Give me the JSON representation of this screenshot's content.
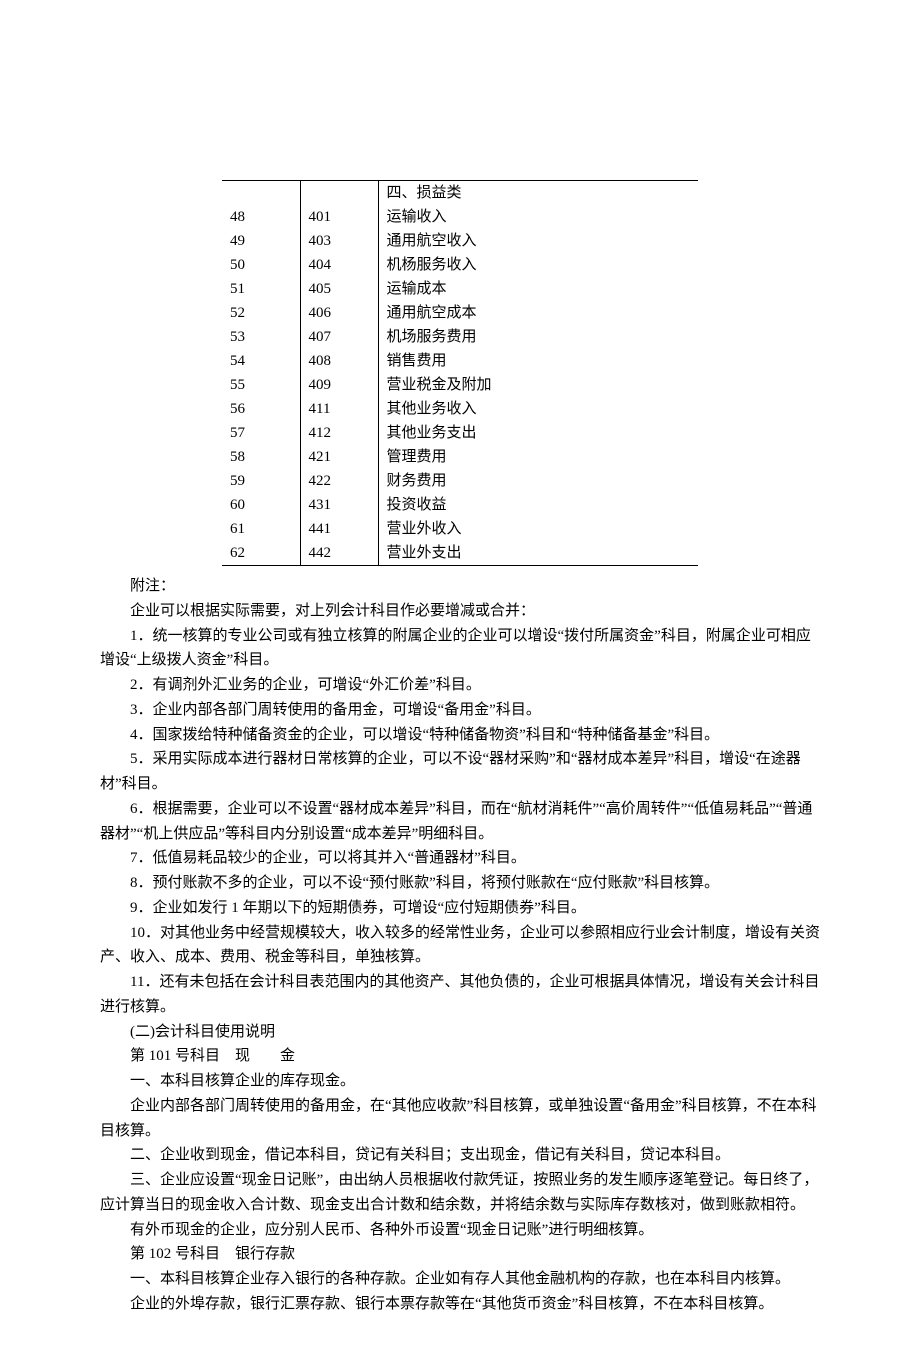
{
  "table": {
    "header_label": "四、损益类",
    "rows": [
      {
        "seq": "48",
        "code": "401",
        "name": "运输收入"
      },
      {
        "seq": "49",
        "code": "403",
        "name": "通用航空收入"
      },
      {
        "seq": "50",
        "code": "404",
        "name": "机杨服务收入"
      },
      {
        "seq": "51",
        "code": "405",
        "name": "运输成本"
      },
      {
        "seq": "52",
        "code": "406",
        "name": "通用航空成本"
      },
      {
        "seq": "53",
        "code": "407",
        "name": "机场服务费用"
      },
      {
        "seq": "54",
        "code": "408",
        "name": "销售费用"
      },
      {
        "seq": "55",
        "code": "409",
        "name": "营业税金及附加"
      },
      {
        "seq": "56",
        "code": "411",
        "name": "其他业务收入"
      },
      {
        "seq": "57",
        "code": "412",
        "name": "其他业务支出"
      },
      {
        "seq": "58",
        "code": "421",
        "name": "管理费用"
      },
      {
        "seq": "59",
        "code": "422",
        "name": "财务费用"
      },
      {
        "seq": "60",
        "code": "431",
        "name": "投资收益"
      },
      {
        "seq": "61",
        "code": "441",
        "name": "营业外收入"
      },
      {
        "seq": "62",
        "code": "442",
        "name": "营业外支出"
      }
    ]
  },
  "paragraphs": [
    "附注：",
    "企业可以根据实际需要，对上列会计科目作必要增减或合并：",
    "1．统一核算的专业公司或有独立核算的附属企业的企业可以增设“拨付所属资金”科目，附属企业可相应增设“上级拨人资金”科目。",
    "2．有调剂外汇业务的企业，可增设“外汇价差”科目。",
    "3．企业内部各部门周转使用的备用金，可增设“备用金”科目。",
    "4．国家拨给特种储备资金的企业，可以增设“特种储备物资”科目和“特种储备基金”科目。",
    "5．采用实际成本进行器材日常核算的企业，可以不设“器材采购”和“器材成本差异”科目，增设“在途器材”科目。",
    "6．根据需要，企业可以不设置“器材成本差异”科目，而在“航材消耗件”“高价周转件”“低值易耗品”“普通器材”“机上供应品”等科目内分别设置“成本差异”明细科目。",
    "7．低值易耗品较少的企业，可以将其并入“普通器材”科目。",
    "8．预付账款不多的企业，可以不设“预付账款”科目，将预付账款在“应付账款”科目核算。",
    "9．企业如发行 1 年期以下的短期债券，可增设“应付短期债券”科目。",
    "10．对其他业务中经营规模较大，收入较多的经常性业务，企业可以参照相应行业会计制度，增设有关资产、收入、成本、费用、税金等科目，单独核算。",
    "11．还有未包括在会计科目表范围内的其他资产、其他负债的，企业可根据具体情况，增设有关会计科目进行核算。",
    "(二)会计科目使用说明",
    "第 101 号科目　现　　金",
    "一、本科目核算企业的库存现金。",
    "企业内部各部门周转使用的备用金，在“其他应收款”科目核算，或单独设置“备用金”科目核算，不在本科目核算。",
    "二、企业收到现金，借记本科目，贷记有关科目；支出现金，借记有关科目，贷记本科目。",
    "三、企业应设置“现金日记账”，由出纳人员根据收付款凭证，按照业务的发生顺序逐笔登记。每日终了，应计算当日的现金收入合计数、现金支出合计数和结余数，并将结余数与实际库存数核对，做到账款相符。",
    "有外币现金的企业，应分别人民币、各种外币设置“现金日记账”进行明细核算。",
    "第 102 号科目　银行存款",
    "一、本科目核算企业存入银行的各种存款。企业如有存人其他金融机构的存款，也在本科目内核算。",
    "企业的外埠存款，银行汇票存款、银行本票存款等在“其他货币资金”科目核算，不在本科目核算。"
  ]
}
